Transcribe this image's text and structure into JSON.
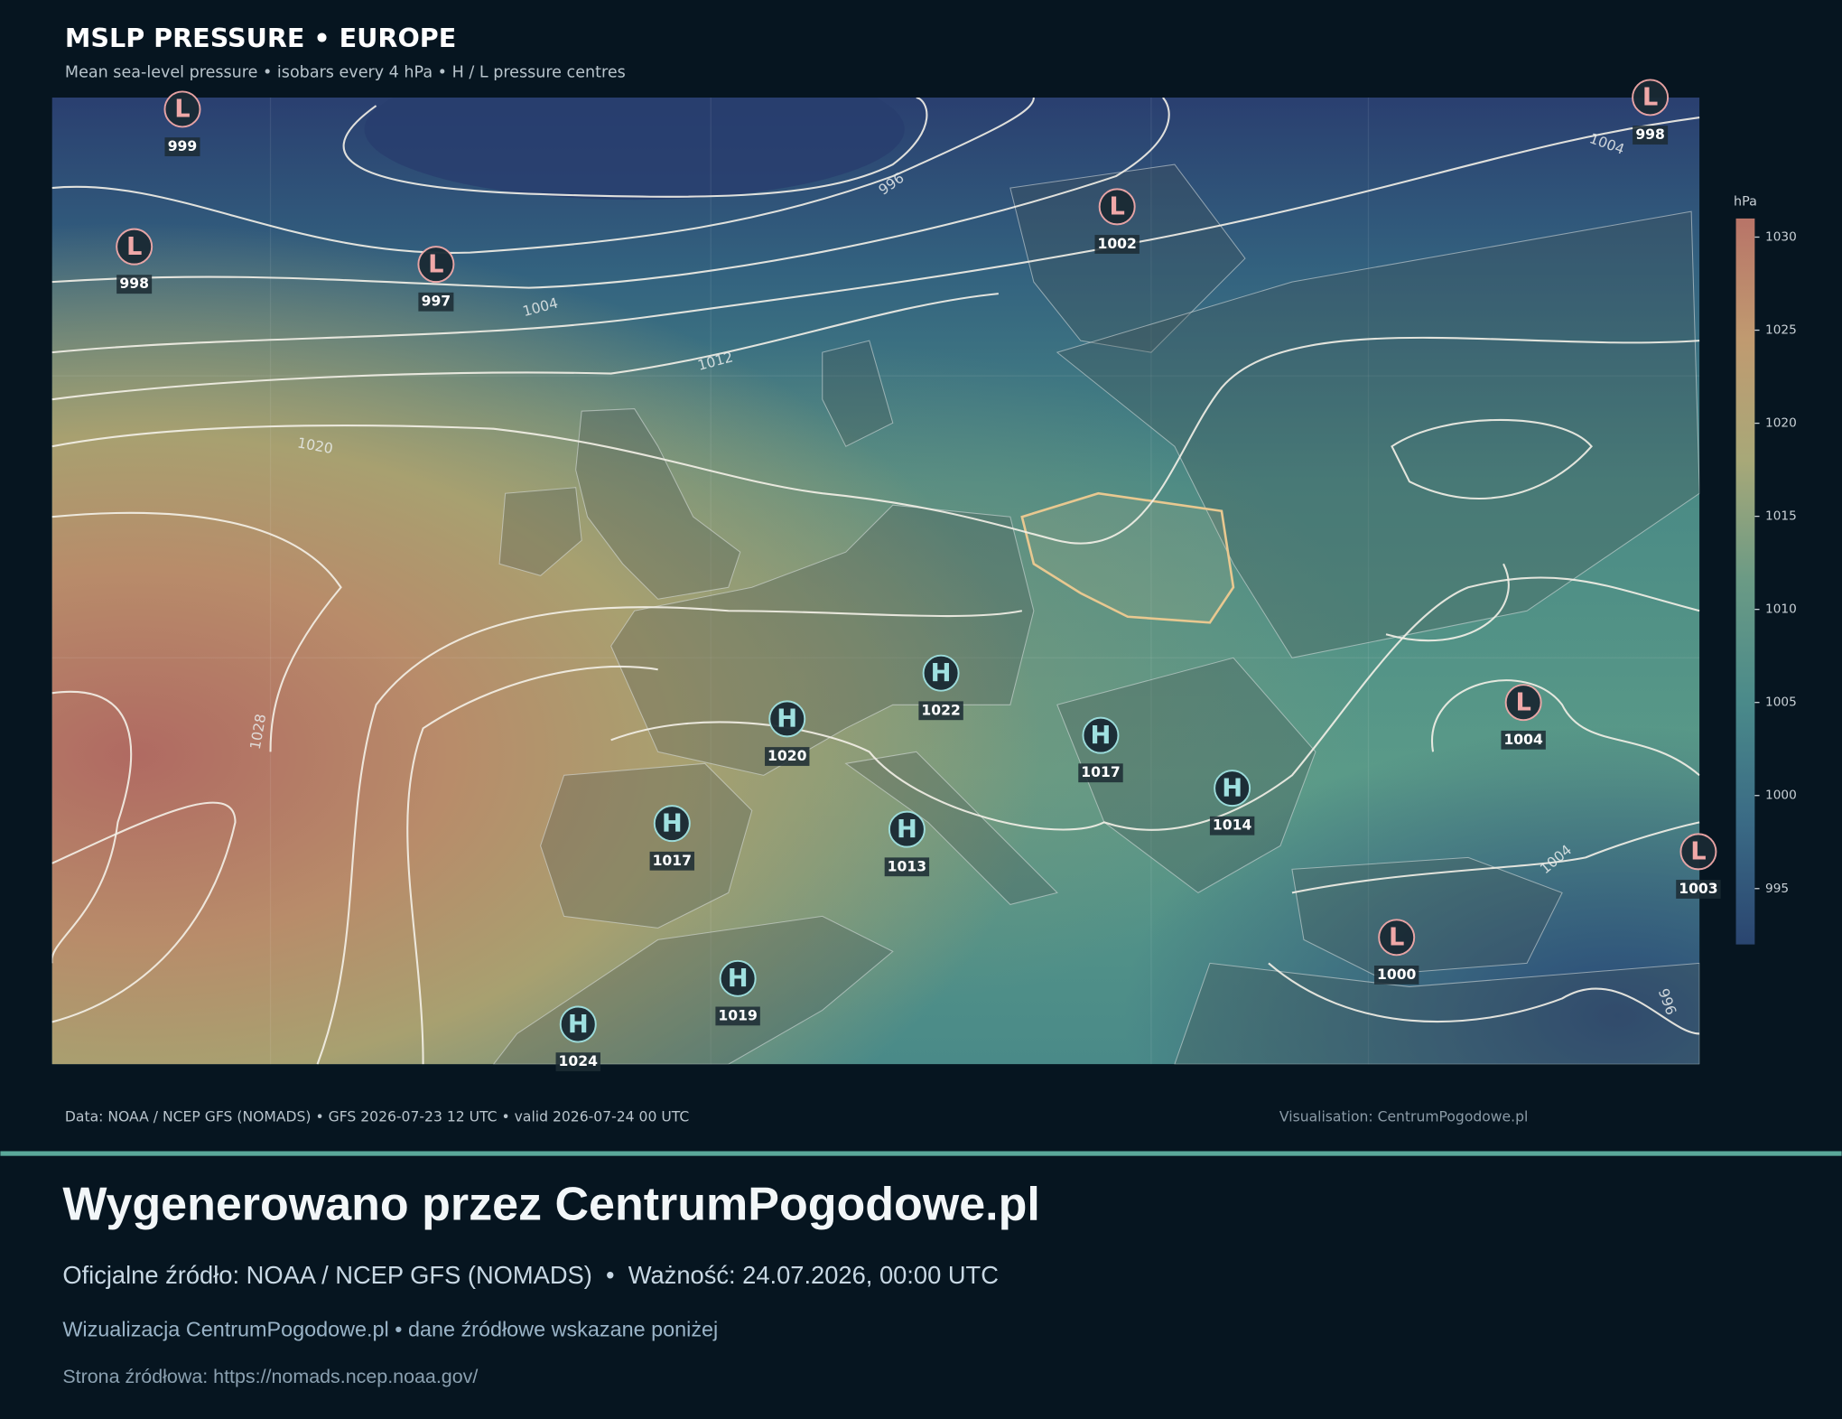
{
  "header": {
    "title": "MSLP PRESSURE • EUROPE",
    "subtitle": "Mean sea-level pressure • isobars every 4 hPa • H / L pressure centres"
  },
  "pressure_centres": [
    {
      "type": "L",
      "value": "999"
    },
    {
      "type": "L",
      "value": "998"
    },
    {
      "type": "L",
      "value": "997"
    },
    {
      "type": "L",
      "value": "1002"
    },
    {
      "type": "L",
      "value": "998"
    },
    {
      "type": "H",
      "value": "1022"
    },
    {
      "type": "H",
      "value": "1020"
    },
    {
      "type": "H",
      "value": "1017"
    },
    {
      "type": "H",
      "value": "1014"
    },
    {
      "type": "H",
      "value": "1017"
    },
    {
      "type": "H",
      "value": "1013"
    },
    {
      "type": "L",
      "value": "1004"
    },
    {
      "type": "L",
      "value": "1003"
    },
    {
      "type": "L",
      "value": "1000"
    },
    {
      "type": "H",
      "value": "1019"
    },
    {
      "type": "H",
      "value": "1024"
    }
  ],
  "isobar_labels": [
    "996",
    "1004",
    "1012",
    "1020",
    "1028",
    "1004",
    "1004",
    "996"
  ],
  "colorbar": {
    "unit": "hPa",
    "range": [
      992,
      1031
    ],
    "ticks": [
      995,
      1000,
      1005,
      1010,
      1015,
      1020,
      1025,
      1030
    ],
    "colors": [
      "#2a4570",
      "#3a6a85",
      "#4a8a8a",
      "#6a9a85",
      "#a8a878",
      "#c09a70",
      "#b87468"
    ]
  },
  "footer": {
    "source": "Data: NOAA / NCEP GFS (NOMADS) • GFS 2026-07-23 12 UTC • valid 2026-07-24 00 UTC",
    "credit": "Visualisation: CentrumPogodowe.pl"
  },
  "banner": {
    "title": "Wygenerowano przez CentrumPogodowe.pl",
    "subtitle": "Oficjalne źródło: NOAA / NCEP GFS (NOMADS)  •  Ważność: 24.07.2026, 00:00 UTC",
    "note": "Wizualizacja CentrumPogodowe.pl • dane źródłowe wskazane poniżej",
    "link": "Strona źródłowa: https://nomads.ncep.noaa.gov/"
  }
}
